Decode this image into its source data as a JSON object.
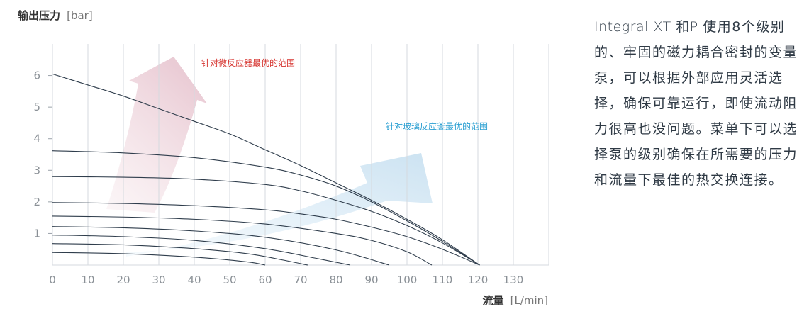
{
  "chart_data": {
    "type": "line",
    "ylabel": "输出压力",
    "ylabel_unit": "[bar]",
    "xlabel": "流量",
    "xlabel_unit": "[L/min]",
    "xlim": [
      0,
      140
    ],
    "ylim": [
      0,
      7
    ],
    "x_ticks": [
      0,
      10,
      20,
      30,
      40,
      50,
      60,
      70,
      80,
      90,
      100,
      110,
      120,
      130
    ],
    "y_ticks": [
      1,
      2,
      3,
      4,
      5,
      6
    ],
    "grid": "vertical",
    "series": [
      {
        "x": [
          0,
          10,
          20,
          30,
          40,
          50,
          60,
          70,
          80,
          90,
          100,
          110,
          120.5
        ],
        "y": [
          6.05,
          5.7,
          5.35,
          4.95,
          4.55,
          4.15,
          3.65,
          3.15,
          2.6,
          2.05,
          1.45,
          0.8,
          0
        ]
      },
      {
        "x": [
          0,
          20,
          40,
          60,
          70,
          80,
          90,
          100,
          110,
          120.5
        ],
        "y": [
          3.62,
          3.55,
          3.4,
          3.1,
          2.85,
          2.5,
          2.0,
          1.4,
          0.75,
          0
        ]
      },
      {
        "x": [
          0,
          20,
          40,
          60,
          70,
          80,
          90,
          100,
          110,
          120.5
        ],
        "y": [
          2.8,
          2.78,
          2.72,
          2.55,
          2.35,
          2.05,
          1.7,
          1.25,
          0.7,
          0
        ]
      },
      {
        "x": [
          0,
          20,
          40,
          60,
          70,
          80,
          90,
          100,
          110,
          120.5
        ],
        "y": [
          1.98,
          1.95,
          1.88,
          1.75,
          1.62,
          1.45,
          1.2,
          0.9,
          0.5,
          0
        ]
      },
      {
        "x": [
          0,
          20,
          40,
          60,
          80,
          90,
          100,
          107
        ],
        "y": [
          1.55,
          1.52,
          1.45,
          1.3,
          1.0,
          0.78,
          0.42,
          0
        ]
      },
      {
        "x": [
          0,
          20,
          40,
          60,
          80,
          95
        ],
        "y": [
          1.22,
          1.18,
          1.08,
          0.88,
          0.48,
          0
        ]
      },
      {
        "x": [
          0,
          20,
          40,
          60,
          75,
          84
        ],
        "y": [
          0.95,
          0.9,
          0.78,
          0.52,
          0.2,
          0
        ]
      },
      {
        "x": [
          0,
          20,
          40,
          55,
          65,
          72
        ],
        "y": [
          0.68,
          0.64,
          0.52,
          0.36,
          0.16,
          0
        ]
      },
      {
        "x": [
          0,
          20,
          40,
          55,
          60
        ],
        "y": [
          0.4,
          0.36,
          0.25,
          0.1,
          0
        ]
      }
    ],
    "annotations": [
      {
        "text": "针对微反应器最优的范围",
        "color": "#d6332e",
        "x": 42,
        "y": 6.3
      },
      {
        "text": "针对玻璃反应釜最优的范围",
        "color": "#2a9fd2",
        "x": 94,
        "y": 4.3
      }
    ],
    "colors": {
      "line": "#2f3d4c",
      "grid": "#d5dadf",
      "arrow_pink": "#efd5dc",
      "arrow_blue": "#d6e7f2"
    }
  },
  "side": {
    "lead": "Integral XT 和P ",
    "body": "使用8个级别的、牢固的磁力耦合密封的变量泵，可以根据外部应用灵活选择，确保可靠运行，即使流动阻力很高也没问题。菜单下可以选择泵的级别确保在所需要的压力和流量下最佳的热交换连接。"
  }
}
